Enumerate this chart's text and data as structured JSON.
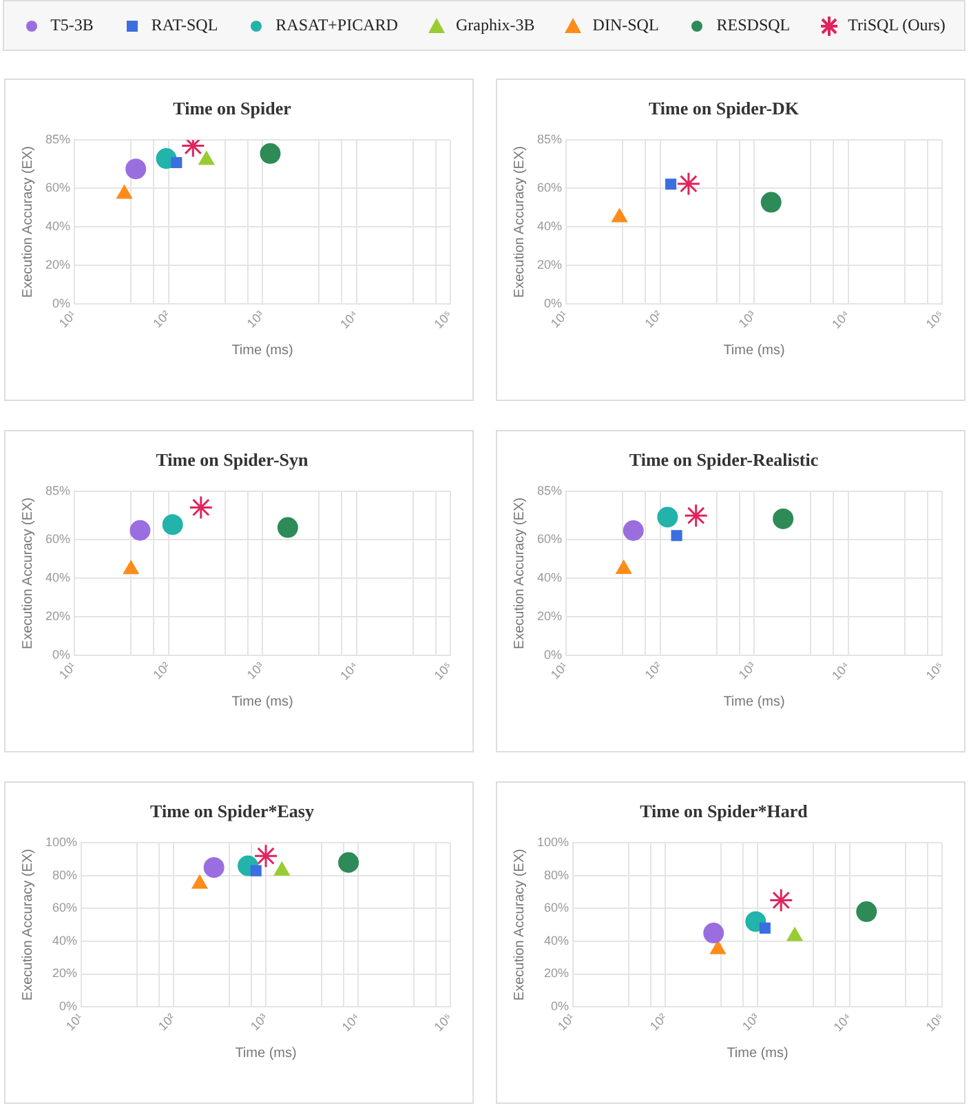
{
  "chart_data": [
    {
      "type": "scatter",
      "title": "Time on Spider",
      "xlabel": "Time (ms)",
      "ylabel": "Execution Accuracy (EX)",
      "log": "x",
      "grid": true,
      "legend": "top",
      "xlim": [
        10,
        100000
      ],
      "xticks": [
        {
          "value": 10,
          "label": "10¹"
        },
        {
          "value": 40,
          "label": null
        },
        {
          "value": 70,
          "label": null
        },
        {
          "value": 100,
          "label": "10²"
        },
        {
          "value": 400,
          "label": null
        },
        {
          "value": 700,
          "label": null
        },
        {
          "value": 1000,
          "label": "10³"
        },
        {
          "value": 4000,
          "label": null
        },
        {
          "value": 7000,
          "label": null
        },
        {
          "value": 10000,
          "label": "10⁴"
        },
        {
          "value": 40000,
          "label": null
        },
        {
          "value": 70000,
          "label": null
        },
        {
          "value": 100000,
          "label": "10⁵"
        }
      ],
      "ylim": [
        0,
        85
      ],
      "yticks": [
        {
          "value": 0,
          "label": "0%"
        },
        {
          "value": 20,
          "label": "20%"
        },
        {
          "value": 40,
          "label": "40%"
        },
        {
          "value": 60,
          "label": "60%"
        },
        {
          "value": 85,
          "label": "85%"
        }
      ],
      "series": [
        {
          "name": "T5-3B",
          "color": "#9b6ee0",
          "marker": "circle",
          "x": [
            45
          ],
          "values": [
            70
          ]
        },
        {
          "name": "RAT-SQL",
          "color": "#3b6fe0",
          "marker": "square",
          "x": [
            122
          ],
          "values": [
            73.3
          ]
        },
        {
          "name": "RASAT+PICARD",
          "color": "#22b3aa",
          "marker": "circle",
          "x": [
            95
          ],
          "values": [
            75.4
          ]
        },
        {
          "name": "Graphix-3B",
          "color": "#99cc33",
          "marker": "triangle",
          "x": [
            254
          ],
          "values": [
            74.6
          ]
        },
        {
          "name": "DIN-SQL",
          "color": "#ff8c1a",
          "marker": "triangle",
          "x": [
            34
          ],
          "values": [
            57
          ]
        },
        {
          "name": "RESDSQL",
          "color": "#2e8b57",
          "marker": "circle",
          "x": [
            1213
          ],
          "values": [
            78
          ]
        },
        {
          "name": "TriSQL (Ours)",
          "color": "#e0245e",
          "marker": "cross",
          "x": [
            183
          ],
          "values": [
            82
          ]
        }
      ]
    },
    {
      "type": "scatter",
      "title": "Time on Spider-DK",
      "xlabel": "Time (ms)",
      "ylabel": "Execution Accuracy (EX)",
      "log": "x",
      "grid": true,
      "xlim": [
        10,
        100000
      ],
      "xticks": [
        {
          "value": 10,
          "label": "10¹"
        },
        {
          "value": 40,
          "label": null
        },
        {
          "value": 70,
          "label": null
        },
        {
          "value": 100,
          "label": "10²"
        },
        {
          "value": 400,
          "label": null
        },
        {
          "value": 700,
          "label": null
        },
        {
          "value": 1000,
          "label": "10³"
        },
        {
          "value": 4000,
          "label": null
        },
        {
          "value": 7000,
          "label": null
        },
        {
          "value": 10000,
          "label": "10⁴"
        },
        {
          "value": 40000,
          "label": null
        },
        {
          "value": 70000,
          "label": null
        },
        {
          "value": 100000,
          "label": "10⁵"
        }
      ],
      "ylim": [
        0,
        85
      ],
      "yticks": [
        {
          "value": 0,
          "label": "0%"
        },
        {
          "value": 20,
          "label": "20%"
        },
        {
          "value": 40,
          "label": "40%"
        },
        {
          "value": 60,
          "label": "60%"
        },
        {
          "value": 85,
          "label": "85%"
        }
      ],
      "series": [
        {
          "color": "#3b6fe0",
          "marker": "square",
          "x": [
            130
          ],
          "values": [
            62.1
          ]
        },
        {
          "color": "#ff8c1a",
          "marker": "triangle",
          "x": [
            37
          ],
          "values": [
            44.9
          ]
        },
        {
          "color": "#2e8b57",
          "marker": "circle",
          "x": [
            1518
          ],
          "values": [
            52.7
          ]
        },
        {
          "color": "#e0245e",
          "marker": "cross",
          "x": [
            201
          ],
          "values": [
            62.3
          ]
        }
      ]
    },
    {
      "type": "scatter",
      "title": "Time on Spider-Syn",
      "xlabel": "Time (ms)",
      "ylabel": "Execution Accuracy (EX)",
      "log": "x",
      "grid": true,
      "xlim": [
        10,
        100000
      ],
      "xticks": [
        {
          "value": 10,
          "label": "10¹"
        },
        {
          "value": 40,
          "label": null
        },
        {
          "value": 70,
          "label": null
        },
        {
          "value": 100,
          "label": "10²"
        },
        {
          "value": 400,
          "label": null
        },
        {
          "value": 700,
          "label": null
        },
        {
          "value": 1000,
          "label": "10³"
        },
        {
          "value": 4000,
          "label": null
        },
        {
          "value": 7000,
          "label": null
        },
        {
          "value": 10000,
          "label": "10⁴"
        },
        {
          "value": 40000,
          "label": null
        },
        {
          "value": 70000,
          "label": null
        },
        {
          "value": 100000,
          "label": "10⁵"
        }
      ],
      "ylim": [
        0,
        85
      ],
      "yticks": [
        {
          "value": 0,
          "label": "0%"
        },
        {
          "value": 20,
          "label": "20%"
        },
        {
          "value": 40,
          "label": "40%"
        },
        {
          "value": 60,
          "label": "60%"
        },
        {
          "value": 85,
          "label": "85%"
        }
      ],
      "series": [
        {
          "color": "#9b6ee0",
          "marker": "circle",
          "x": [
            50
          ],
          "values": [
            64.8
          ]
        },
        {
          "color": "#22b3aa",
          "marker": "circle",
          "x": [
            111
          ],
          "values": [
            67.8
          ]
        },
        {
          "color": "#ff8c1a",
          "marker": "triangle",
          "x": [
            40
          ],
          "values": [
            44.6
          ]
        },
        {
          "color": "#2e8b57",
          "marker": "circle",
          "x": [
            1862
          ],
          "values": [
            66.3
          ]
        },
        {
          "color": "#e0245e",
          "marker": "cross",
          "x": [
            222
          ],
          "values": [
            76.7
          ]
        }
      ]
    },
    {
      "type": "scatter",
      "title": "Time on Spider-Realistic",
      "xlabel": "Time (ms)",
      "ylabel": "Execution Accuracy (EX)",
      "log": "x",
      "grid": true,
      "xlim": [
        10,
        100000
      ],
      "xticks": [
        {
          "value": 10,
          "label": "10¹"
        },
        {
          "value": 40,
          "label": null
        },
        {
          "value": 70,
          "label": null
        },
        {
          "value": 100,
          "label": "10²"
        },
        {
          "value": 400,
          "label": null
        },
        {
          "value": 700,
          "label": null
        },
        {
          "value": 1000,
          "label": "10³"
        },
        {
          "value": 4000,
          "label": null
        },
        {
          "value": 7000,
          "label": null
        },
        {
          "value": 10000,
          "label": "10⁴"
        },
        {
          "value": 40000,
          "label": null
        },
        {
          "value": 70000,
          "label": null
        },
        {
          "value": 100000,
          "label": "10⁵"
        }
      ],
      "ylim": [
        0,
        85
      ],
      "yticks": [
        {
          "value": 0,
          "label": "0%"
        },
        {
          "value": 20,
          "label": "20%"
        },
        {
          "value": 40,
          "label": "40%"
        },
        {
          "value": 60,
          "label": "60%"
        },
        {
          "value": 85,
          "label": "85%"
        }
      ],
      "series": [
        {
          "color": "#9b6ee0",
          "marker": "circle",
          "x": [
            52
          ],
          "values": [
            64.7
          ]
        },
        {
          "color": "#3b6fe0",
          "marker": "square",
          "x": [
            150
          ],
          "values": [
            62.1
          ]
        },
        {
          "color": "#22b3aa",
          "marker": "circle",
          "x": [
            120
          ],
          "values": [
            71.7
          ]
        },
        {
          "color": "#ff8c1a",
          "marker": "triangle",
          "x": [
            41
          ],
          "values": [
            44.7
          ]
        },
        {
          "color": "#2e8b57",
          "marker": "circle",
          "x": [
            2037
          ],
          "values": [
            70.8
          ]
        },
        {
          "color": "#e0245e",
          "marker": "cross",
          "x": [
            241
          ],
          "values": [
            72.5
          ]
        }
      ]
    },
    {
      "type": "scatter",
      "title": "Time on Spider*Easy",
      "xlabel": "Time (ms)",
      "ylabel": "Execution Accuracy (EX)",
      "log": "x",
      "grid": true,
      "xlim": [
        10,
        100000
      ],
      "xticks": [
        {
          "value": 10,
          "label": "10¹"
        },
        {
          "value": 40,
          "label": null
        },
        {
          "value": 70,
          "label": null
        },
        {
          "value": 100,
          "label": "10²"
        },
        {
          "value": 400,
          "label": null
        },
        {
          "value": 700,
          "label": null
        },
        {
          "value": 1000,
          "label": "10³"
        },
        {
          "value": 4000,
          "label": null
        },
        {
          "value": 7000,
          "label": null
        },
        {
          "value": 10000,
          "label": "10⁴"
        },
        {
          "value": 40000,
          "label": null
        },
        {
          "value": 70000,
          "label": null
        },
        {
          "value": 100000,
          "label": "10⁵"
        }
      ],
      "ylim": [
        0,
        100
      ],
      "yticks": [
        {
          "value": 0,
          "label": "0%"
        },
        {
          "value": 20,
          "label": "20%"
        },
        {
          "value": 40,
          "label": "40%"
        },
        {
          "value": 60,
          "label": "60%"
        },
        {
          "value": 80,
          "label": "80%"
        },
        {
          "value": 100,
          "label": "100%"
        }
      ],
      "series": [
        {
          "color": "#9b6ee0",
          "marker": "circle",
          "x": [
            274
          ],
          "values": [
            85
          ]
        },
        {
          "color": "#3b6fe0",
          "marker": "square",
          "x": [
            782
          ],
          "values": [
            83
          ]
        },
        {
          "color": "#22b3aa",
          "marker": "circle",
          "x": [
            640
          ],
          "values": [
            86
          ]
        },
        {
          "color": "#99cc33",
          "marker": "triangle",
          "x": [
            1493
          ],
          "values": [
            83
          ]
        },
        {
          "color": "#ff8c1a",
          "marker": "triangle",
          "x": [
            192
          ],
          "values": [
            75
          ]
        },
        {
          "color": "#2e8b57",
          "marker": "circle",
          "x": [
            7870
          ],
          "values": [
            88
          ]
        },
        {
          "color": "#e0245e",
          "marker": "cross",
          "x": [
            1000
          ],
          "values": [
            92
          ]
        }
      ]
    },
    {
      "type": "scatter",
      "title": "Time on Spider*Hard",
      "xlabel": "Time (ms)",
      "ylabel": "Execution Accuracy (EX)",
      "log": "x",
      "grid": true,
      "xlim": [
        10,
        100000
      ],
      "xticks": [
        {
          "value": 10,
          "label": "10¹"
        },
        {
          "value": 40,
          "label": null
        },
        {
          "value": 70,
          "label": null
        },
        {
          "value": 100,
          "label": "10²"
        },
        {
          "value": 400,
          "label": null
        },
        {
          "value": 700,
          "label": null
        },
        {
          "value": 1000,
          "label": "10³"
        },
        {
          "value": 4000,
          "label": null
        },
        {
          "value": 7000,
          "label": null
        },
        {
          "value": 10000,
          "label": "10⁴"
        },
        {
          "value": 40000,
          "label": null
        },
        {
          "value": 70000,
          "label": null
        },
        {
          "value": 100000,
          "label": "10⁵"
        }
      ],
      "ylim": [
        0,
        100
      ],
      "yticks": [
        {
          "value": 0,
          "label": "0%"
        },
        {
          "value": 20,
          "label": "20%"
        },
        {
          "value": 40,
          "label": "40%"
        },
        {
          "value": 60,
          "label": "60%"
        },
        {
          "value": 80,
          "label": "80%"
        },
        {
          "value": 100,
          "label": "100%"
        }
      ],
      "series": [
        {
          "color": "#9b6ee0",
          "marker": "circle",
          "x": [
            334
          ],
          "values": [
            45
          ]
        },
        {
          "color": "#3b6fe0",
          "marker": "square",
          "x": [
            1205
          ],
          "values": [
            48
          ]
        },
        {
          "color": "#22b3aa",
          "marker": "circle",
          "x": [
            955
          ],
          "values": [
            52
          ]
        },
        {
          "color": "#99cc33",
          "marker": "triangle",
          "x": [
            2529
          ],
          "values": [
            43
          ]
        },
        {
          "color": "#ff8c1a",
          "marker": "triangle",
          "x": [
            372
          ],
          "values": [
            35
          ]
        },
        {
          "color": "#2e8b57",
          "marker": "circle",
          "x": [
            15170
          ],
          "values": [
            58
          ]
        },
        {
          "color": "#e0245e",
          "marker": "cross",
          "x": [
            1800
          ],
          "values": [
            65
          ]
        }
      ]
    }
  ]
}
